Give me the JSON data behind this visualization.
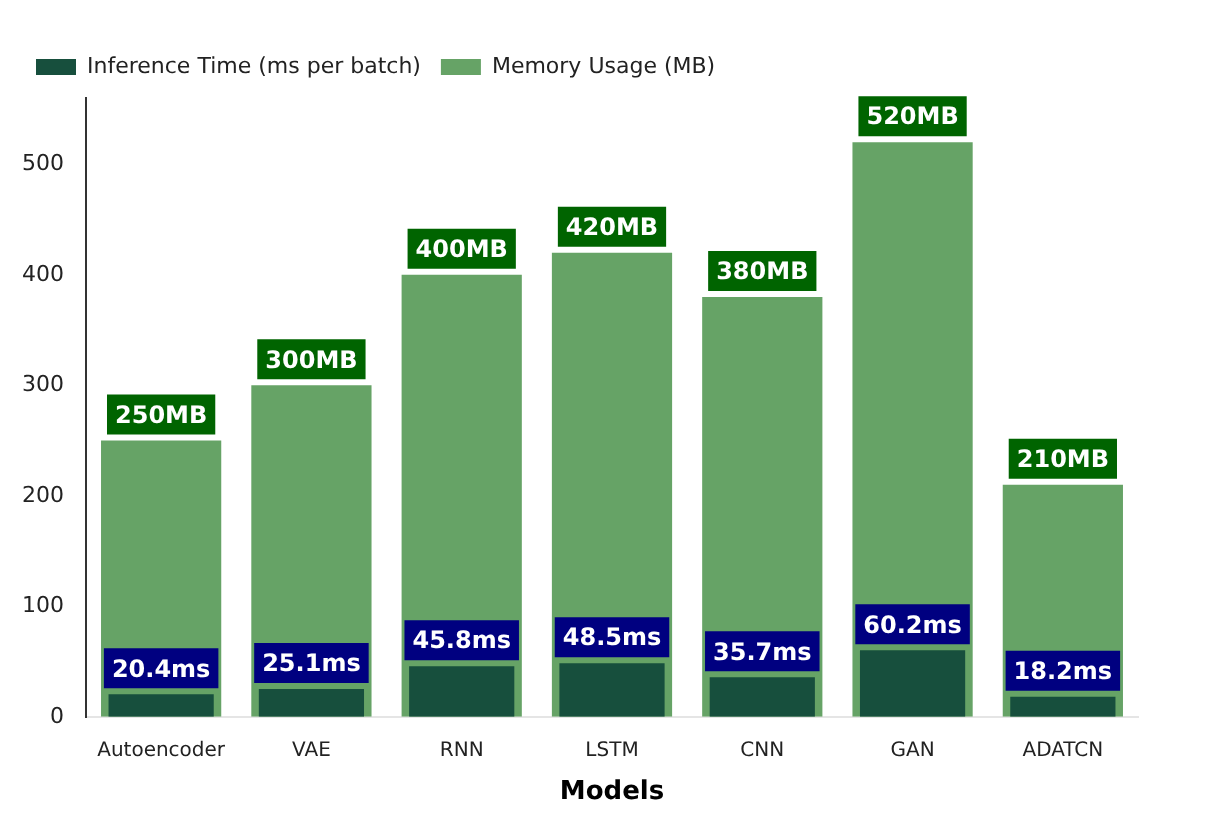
{
  "chart_data": {
    "type": "bar",
    "xlabel": "Models",
    "categories": [
      "Autoencoder",
      "VAE",
      "RNN",
      "LSTM",
      "CNN",
      "GAN",
      "ADATCN"
    ],
    "series": [
      {
        "name": "Inference Time (ms per batch)",
        "color": "#174f3d",
        "values": [
          20.4,
          25.1,
          45.8,
          48.5,
          35.7,
          60.2,
          18.2
        ],
        "value_labels": [
          "20.4ms",
          "25.1ms",
          "45.8ms",
          "48.5ms",
          "35.7ms",
          "60.2ms",
          "18.2ms"
        ]
      },
      {
        "name": "Memory Usage (MB)",
        "color": "#66a366",
        "values": [
          250,
          300,
          400,
          420,
          380,
          520,
          210
        ],
        "value_labels": [
          "250MB",
          "300MB",
          "400MB",
          "420MB",
          "380MB",
          "520MB",
          "210MB"
        ]
      }
    ],
    "ylim": [
      0,
      560
    ],
    "yticks": [
      0,
      100,
      200,
      300,
      400,
      500
    ],
    "grid": false,
    "legend": "top left"
  }
}
